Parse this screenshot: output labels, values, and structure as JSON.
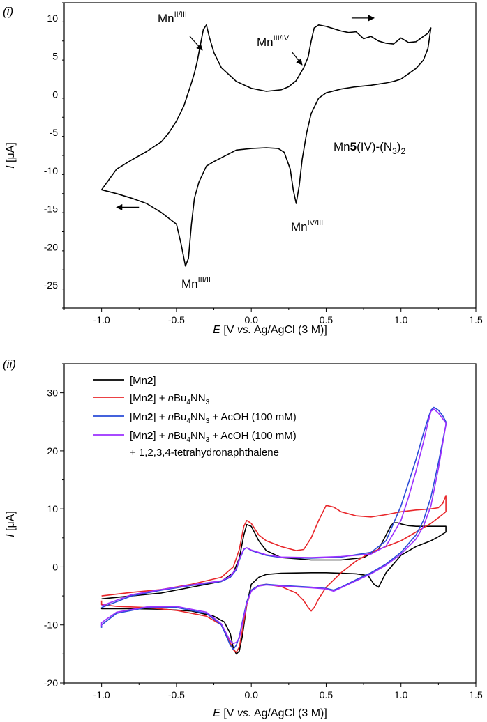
{
  "figure": {
    "panels": [
      "(i)",
      "(ii)"
    ]
  },
  "chart_data": [
    {
      "type": "line",
      "panel": "(i)",
      "title": "",
      "xlabel": "E [V vs. Ag/AgCl (3 M)]",
      "xlabel_parts": {
        "e": "E",
        "pre": "[V ",
        "vs": "vs.",
        "post": " Ag/AgCl (3 M)]"
      },
      "ylabel": "I [μA]",
      "ylabel_parts": {
        "i": "I",
        "unit": "[μA]"
      },
      "xlim": [
        -1.25,
        1.5
      ],
      "ylim": [
        -28,
        12
      ],
      "xticks": [
        -1.0,
        -0.5,
        0.0,
        0.5,
        1.0,
        1.5
      ],
      "xtick_labels": [
        "-1.0",
        "-0.5",
        "0.0",
        "0.5",
        "1.0",
        "1.5"
      ],
      "yticks": [
        10,
        5,
        0,
        -5,
        -10,
        -15,
        -20,
        -25
      ],
      "ytick_labels": [
        "10",
        "5",
        "0",
        "-5",
        "-10",
        "-15",
        "-20",
        "-25"
      ],
      "compound_label": {
        "pre": "Mn",
        "bold": "5",
        "mid": "(IV)-(N",
        "sub": "3",
        "post": ")",
        "sub2": "2"
      },
      "annotations": [
        {
          "base": "Mn",
          "sup": "II/III",
          "x": -0.33,
          "y": 9.0
        },
        {
          "base": "Mn",
          "sup": "III/IV",
          "x": 0.43,
          "y": 4.4
        },
        {
          "base": "Mn",
          "sup": "IV/III",
          "x": 0.29,
          "y": -14.3
        },
        {
          "base": "Mn",
          "sup": "III/II",
          "x": -0.42,
          "y": -22.5
        }
      ],
      "arrows": [
        {
          "direction": "right",
          "x": [
            0.67,
            0.82
          ],
          "y": 10.0
        },
        {
          "direction": "left",
          "x": [
            -0.75,
            -0.9
          ],
          "y": -14.8
        }
      ],
      "series": [
        {
          "name": "Mn5(IV)-(N3)2",
          "color": "#000000",
          "x": [
            -1.0,
            -0.9,
            -0.8,
            -0.7,
            -0.6,
            -0.55,
            -0.5,
            -0.45,
            -0.4,
            -0.38,
            -0.36,
            -0.34,
            -0.32,
            -0.3,
            -0.28,
            -0.25,
            -0.2,
            -0.1,
            0.0,
            0.1,
            0.2,
            0.25,
            0.3,
            0.35,
            0.38,
            0.4,
            0.42,
            0.45,
            0.5,
            0.55,
            0.6,
            0.65,
            0.7,
            0.75,
            0.8,
            0.85,
            0.9,
            0.95,
            1.0,
            1.05,
            1.1,
            1.15,
            1.18,
            1.2,
            1.18,
            1.15,
            1.1,
            1.05,
            1.0,
            0.95,
            0.9,
            0.8,
            0.7,
            0.6,
            0.5,
            0.45,
            0.4,
            0.37,
            0.34,
            0.32,
            0.3,
            0.28,
            0.26,
            0.22,
            0.18,
            0.1,
            0.0,
            -0.1,
            -0.15,
            -0.2,
            -0.25,
            -0.3,
            -0.35,
            -0.38,
            -0.4,
            -0.42,
            -0.44,
            -0.47,
            -0.5,
            -0.6,
            -0.7,
            -0.8,
            -0.9,
            -1.0,
            -1.0
          ],
          "y": [
            -12.5,
            -9.8,
            -8.6,
            -7.5,
            -6.2,
            -5.0,
            -3.5,
            -1.5,
            1.5,
            2.8,
            4.4,
            6.5,
            8.5,
            9.1,
            7.5,
            5.5,
            3.5,
            1.7,
            0.8,
            0.4,
            0.6,
            1.0,
            1.8,
            3.5,
            4.9,
            7.0,
            8.7,
            9.1,
            8.9,
            8.6,
            8.3,
            8.1,
            8.2,
            7.3,
            7.6,
            7.0,
            6.7,
            6.6,
            7.4,
            6.8,
            6.9,
            7.6,
            8.0,
            8.7,
            6.0,
            4.5,
            3.4,
            2.7,
            2.0,
            1.7,
            1.5,
            1.2,
            1.0,
            0.7,
            0.2,
            -0.5,
            -2.5,
            -5.0,
            -8.5,
            -12.0,
            -14.3,
            -12.5,
            -9.8,
            -7.6,
            -7.1,
            -7.0,
            -7.1,
            -7.3,
            -7.8,
            -8.3,
            -8.8,
            -9.4,
            -11.5,
            -13.6,
            -17.0,
            -21.5,
            -22.5,
            -19.5,
            -17.0,
            -15.5,
            -14.3,
            -13.6,
            -13.0,
            -12.5,
            -12.5
          ]
        }
      ]
    },
    {
      "type": "line",
      "panel": "(ii)",
      "title": "",
      "xlabel": "E [V vs. Ag/AgCl (3 M)]",
      "xlabel_parts": {
        "e": "E",
        "pre": "[V ",
        "vs": "vs.",
        "post": " Ag/AgCl (3 M)]"
      },
      "ylabel": "I [μA]",
      "ylabel_parts": {
        "i": "I",
        "unit": "[μA]"
      },
      "xlim": [
        -1.25,
        1.5
      ],
      "ylim": [
        -20,
        35
      ],
      "xticks": [
        -1.0,
        -0.5,
        0.0,
        0.5,
        1.0,
        1.5
      ],
      "xtick_labels": [
        "-1.0",
        "-0.5",
        "0.0",
        "0.5",
        "1.0",
        "1.5"
      ],
      "yticks": [
        30,
        20,
        10,
        0,
        -10,
        -20
      ],
      "ytick_labels": [
        "30",
        "20",
        "10",
        "0",
        "-10",
        "-20"
      ],
      "legend": {
        "position": "top-left",
        "entries": [
          {
            "color": "#000000",
            "pre": "[Mn",
            "bold": "2",
            "post": "]",
            "reagent": null,
            "extra": null
          },
          {
            "color": "#e8262a",
            "pre": "[Mn",
            "bold": "2",
            "post": "] + ",
            "reagent": {
              "n": "n",
              "bu": "Bu",
              "sub": "4",
              "nn": "NN",
              "sub2": "3"
            },
            "extra": null
          },
          {
            "color": "#2a4bd7",
            "pre": "[Mn",
            "bold": "2",
            "post": "] + ",
            "reagent": {
              "n": "n",
              "bu": "Bu",
              "sub": "4",
              "nn": "NN",
              "sub2": "3"
            },
            "extra": " + AcOH (100 mM)"
          },
          {
            "color": "#9b30ff",
            "pre": "[Mn",
            "bold": "2",
            "post": "] + ",
            "reagent": {
              "n": "n",
              "bu": "Bu",
              "sub": "4",
              "nn": "NN",
              "sub2": "3"
            },
            "extra": " + AcOH (100 mM)"
          }
        ],
        "continuation": "+ 1,2,3,4-tetrahydronaphthalene"
      },
      "series": [
        {
          "name": "[Mn2]",
          "color": "#000000",
          "x": [
            -1.0,
            -0.8,
            -0.6,
            -0.4,
            -0.2,
            -0.12,
            -0.08,
            -0.05,
            -0.03,
            0.0,
            0.05,
            0.1,
            0.2,
            0.4,
            0.6,
            0.75,
            0.85,
            0.9,
            0.93,
            0.95,
            0.98,
            1.0,
            1.05,
            1.1,
            1.2,
            1.3,
            1.3,
            1.25,
            1.2,
            1.1,
            1.0,
            0.95,
            0.9,
            0.87,
            0.85,
            0.82,
            0.78,
            0.7,
            0.6,
            0.5,
            0.4,
            0.2,
            0.1,
            0.05,
            0.0,
            -0.03,
            -0.06,
            -0.08,
            -0.1,
            -0.12,
            -0.14,
            -0.18,
            -0.25,
            -0.4,
            -0.6,
            -0.8,
            -0.9,
            -1.0,
            -1.0
          ],
          "y": [
            -5.5,
            -5.0,
            -4.5,
            -3.5,
            -2.5,
            -1.0,
            1.5,
            5.5,
            7.3,
            7.0,
            4.5,
            2.8,
            1.6,
            1.2,
            1.2,
            1.6,
            3.0,
            5.5,
            7.0,
            7.6,
            7.6,
            7.4,
            7.1,
            7.0,
            7.0,
            7.0,
            6.0,
            5.2,
            4.5,
            3.5,
            2.0,
            0.5,
            -1.0,
            -2.5,
            -3.5,
            -3.0,
            -1.5,
            -1.2,
            -1.1,
            -1.0,
            -1.0,
            -1.1,
            -1.3,
            -1.8,
            -3.0,
            -6.5,
            -12.0,
            -14.5,
            -15.0,
            -14.0,
            -11.5,
            -9.5,
            -8.5,
            -7.6,
            -7.3,
            -7.2,
            -7.2,
            -7.2,
            -7.0
          ]
        },
        {
          "name": "[Mn2] + nBu4NN3",
          "color": "#e8262a",
          "x": [
            -1.0,
            -0.8,
            -0.6,
            -0.4,
            -0.2,
            -0.12,
            -0.08,
            -0.05,
            -0.03,
            0.0,
            0.05,
            0.1,
            0.2,
            0.3,
            0.35,
            0.4,
            0.45,
            0.5,
            0.55,
            0.6,
            0.7,
            0.8,
            0.9,
            1.0,
            1.1,
            1.2,
            1.25,
            1.28,
            1.3,
            1.3,
            1.25,
            1.2,
            1.1,
            1.0,
            0.9,
            0.8,
            0.7,
            0.6,
            0.5,
            0.45,
            0.42,
            0.4,
            0.38,
            0.35,
            0.3,
            0.2,
            0.1,
            0.05,
            0.0,
            -0.03,
            -0.06,
            -0.08,
            -0.1,
            -0.12,
            -0.15,
            -0.2,
            -0.3,
            -0.5,
            -0.7,
            -0.9,
            -1.0,
            -1.0
          ],
          "y": [
            -5.0,
            -4.4,
            -3.9,
            -3.0,
            -1.8,
            0.0,
            3.0,
            7.0,
            8.0,
            7.5,
            5.5,
            4.5,
            3.5,
            2.8,
            3.0,
            5.0,
            8.0,
            10.6,
            10.3,
            9.5,
            8.8,
            8.6,
            9.0,
            9.5,
            9.8,
            10.0,
            10.2,
            11.0,
            12.3,
            9.5,
            8.5,
            7.5,
            6.0,
            4.5,
            3.5,
            2.5,
            1.0,
            -1.0,
            -3.5,
            -5.5,
            -7.0,
            -7.6,
            -7.0,
            -5.8,
            -4.5,
            -3.4,
            -3.0,
            -3.2,
            -4.0,
            -6.5,
            -11.0,
            -13.8,
            -14.7,
            -14.3,
            -12.5,
            -10.0,
            -8.5,
            -7.5,
            -7.0,
            -6.8,
            -6.5,
            -5.8
          ]
        },
        {
          "name": "[Mn2] + nBu4NN3 + AcOH (100 mM)",
          "color": "#2a4bd7",
          "x": [
            -1.0,
            -0.8,
            -0.6,
            -0.4,
            -0.2,
            -0.14,
            -0.1,
            -0.08,
            -0.05,
            -0.03,
            0.0,
            0.1,
            0.2,
            0.4,
            0.6,
            0.8,
            0.9,
            1.0,
            1.05,
            1.1,
            1.15,
            1.18,
            1.2,
            1.22,
            1.25,
            1.28,
            1.3,
            1.3,
            1.25,
            1.2,
            1.15,
            1.1,
            1.0,
            0.9,
            0.8,
            0.7,
            0.6,
            0.55,
            0.5,
            0.4,
            0.2,
            0.1,
            0.05,
            0.0,
            -0.03,
            -0.06,
            -0.08,
            -0.1,
            -0.12,
            -0.14,
            -0.2,
            -0.3,
            -0.5,
            -0.7,
            -0.9,
            -1.0,
            -1.0
          ],
          "y": [
            -7.0,
            -5.0,
            -4.0,
            -3.2,
            -2.5,
            -1.8,
            -0.5,
            1.2,
            3.0,
            3.3,
            2.8,
            2.0,
            1.6,
            1.5,
            1.7,
            2.5,
            4.5,
            10.5,
            14.5,
            18.5,
            23.0,
            25.5,
            27.0,
            27.5,
            27.0,
            26.0,
            25.0,
            24.5,
            18.0,
            12.0,
            8.0,
            5.5,
            2.5,
            0.5,
            -1.0,
            -2.2,
            -3.5,
            -4.0,
            -3.7,
            -3.5,
            -3.2,
            -3.0,
            -3.2,
            -4.0,
            -6.0,
            -9.5,
            -12.0,
            -13.5,
            -14.2,
            -13.5,
            -10.0,
            -8.0,
            -7.0,
            -7.0,
            -8.0,
            -10.0,
            -10.5
          ]
        },
        {
          "name": "[Mn2] + nBu4NN3 + AcOH (100 mM) + 1,2,3,4-tetrahydronaphthalene",
          "color": "#9b30ff",
          "x": [
            -1.0,
            -0.8,
            -0.6,
            -0.4,
            -0.2,
            -0.14,
            -0.1,
            -0.08,
            -0.05,
            -0.03,
            0.0,
            0.1,
            0.2,
            0.4,
            0.6,
            0.8,
            0.9,
            1.0,
            1.05,
            1.1,
            1.15,
            1.18,
            1.2,
            1.22,
            1.25,
            1.28,
            1.3,
            1.3,
            1.25,
            1.2,
            1.15,
            1.1,
            1.0,
            0.9,
            0.8,
            0.7,
            0.6,
            0.55,
            0.5,
            0.4,
            0.2,
            0.1,
            0.05,
            0.0,
            -0.03,
            -0.06,
            -0.08,
            -0.1,
            -0.12,
            -0.14,
            -0.2,
            -0.3,
            -0.5,
            -0.7,
            -0.9,
            -1.0,
            -1.0
          ],
          "y": [
            -6.7,
            -4.8,
            -3.9,
            -3.1,
            -2.4,
            -1.6,
            -0.3,
            1.4,
            3.1,
            3.3,
            2.9,
            2.1,
            1.7,
            1.6,
            1.8,
            2.2,
            3.6,
            8.0,
            12.0,
            16.5,
            21.5,
            24.8,
            26.8,
            27.2,
            26.5,
            25.5,
            24.8,
            24.5,
            17.0,
            10.5,
            7.0,
            4.8,
            2.2,
            0.3,
            -1.2,
            -2.4,
            -3.6,
            -4.2,
            -3.8,
            -3.6,
            -3.3,
            -3.1,
            -3.3,
            -4.2,
            -6.3,
            -9.8,
            -12.3,
            -13.0,
            -13.2,
            -12.8,
            -9.8,
            -7.8,
            -6.8,
            -6.9,
            -7.8,
            -9.6,
            -10.2
          ]
        }
      ]
    }
  ]
}
